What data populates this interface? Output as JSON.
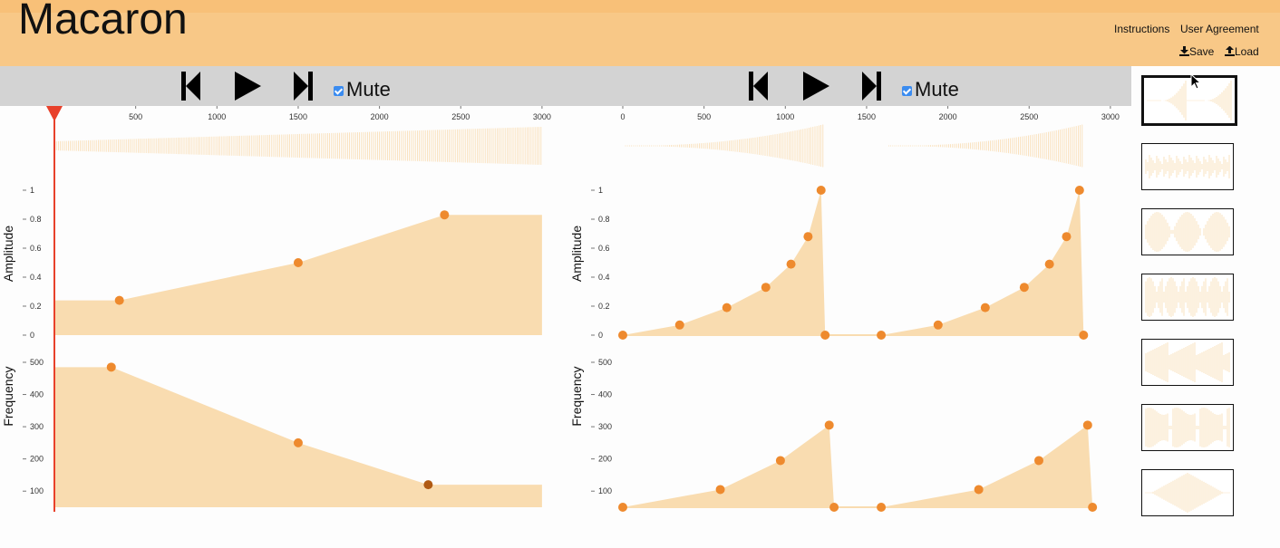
{
  "app": {
    "title": "Macaron"
  },
  "header": {
    "links": {
      "instructions": "Instructions",
      "agreement": "User Agreement",
      "save": "Save",
      "load": "Load"
    }
  },
  "colors": {
    "header": "#f8c887",
    "envelope_fill": "#f9dcb0",
    "point": "#ee8a2e",
    "point_selected": "#b05a14",
    "playhead": "#e8412b",
    "toolbar": "#d3d3d3"
  },
  "editors": [
    {
      "mute_label": "Mute",
      "time_ticks": [
        "500",
        "1000",
        "1500",
        "2000",
        "2500",
        "3000"
      ],
      "amplitude": {
        "label": "Amplitude",
        "ticks": [
          "1",
          "0.8",
          "0.6",
          "0.4",
          "0.2",
          "0"
        ],
        "points": [
          {
            "t": 0,
            "v": 0.24
          },
          {
            "t": 400,
            "v": 0.24
          },
          {
            "t": 1500,
            "v": 0.5
          },
          {
            "t": 2400,
            "v": 0.83
          },
          {
            "t": 3000,
            "v": 0.83
          }
        ],
        "handles": [
          1,
          2,
          3
        ]
      },
      "frequency": {
        "label": "Frequency",
        "ticks": [
          "500",
          "400",
          "300",
          "200",
          "100"
        ],
        "points": [
          {
            "t": 0,
            "v": 485
          },
          {
            "t": 350,
            "v": 485
          },
          {
            "t": 1500,
            "v": 250
          },
          {
            "t": 2300,
            "v": 120
          },
          {
            "t": 3000,
            "v": 120
          }
        ],
        "handles": [
          1,
          2,
          3
        ],
        "selected": 3
      }
    },
    {
      "mute_label": "Mute",
      "time_ticks": [
        "0",
        "500",
        "1000",
        "1500",
        "2000",
        "2500",
        "3000"
      ],
      "amplitude": {
        "label": "Amplitude",
        "ticks": [
          "1",
          "0.8",
          "0.6",
          "0.4",
          "0.2",
          "0"
        ],
        "points": [
          {
            "t": 0,
            "v": 0
          },
          {
            "t": 350,
            "v": 0.07
          },
          {
            "t": 640,
            "v": 0.19
          },
          {
            "t": 880,
            "v": 0.33
          },
          {
            "t": 1035,
            "v": 0.49
          },
          {
            "t": 1140,
            "v": 0.68
          },
          {
            "t": 1220,
            "v": 1
          },
          {
            "t": 1245,
            "v": 0
          },
          {
            "t": 1590,
            "v": 0
          },
          {
            "t": 1940,
            "v": 0.07
          },
          {
            "t": 2230,
            "v": 0.19
          },
          {
            "t": 2470,
            "v": 0.33
          },
          {
            "t": 2625,
            "v": 0.49
          },
          {
            "t": 2730,
            "v": 0.68
          },
          {
            "t": 2810,
            "v": 1
          },
          {
            "t": 2835,
            "v": 0
          }
        ]
      },
      "frequency": {
        "label": "Frequency",
        "ticks": [
          "500",
          "400",
          "300",
          "200",
          "100"
        ],
        "points": [
          {
            "t": 0,
            "v": 50
          },
          {
            "t": 600,
            "v": 105
          },
          {
            "t": 970,
            "v": 195
          },
          {
            "t": 1270,
            "v": 305
          },
          {
            "t": 1300,
            "v": 50
          },
          {
            "t": 1590,
            "v": 50
          },
          {
            "t": 2190,
            "v": 105
          },
          {
            "t": 2560,
            "v": 195
          },
          {
            "t": 2860,
            "v": 305
          },
          {
            "t": 2890,
            "v": 50
          }
        ]
      }
    }
  ],
  "library": {
    "thumbnails": [
      {
        "name": "sound-1",
        "selected": true
      },
      {
        "name": "sound-2",
        "selected": false
      },
      {
        "name": "sound-3",
        "selected": false
      },
      {
        "name": "sound-4",
        "selected": false
      },
      {
        "name": "sound-5",
        "selected": false
      },
      {
        "name": "sound-6",
        "selected": false
      },
      {
        "name": "sound-7",
        "selected": false
      }
    ]
  }
}
